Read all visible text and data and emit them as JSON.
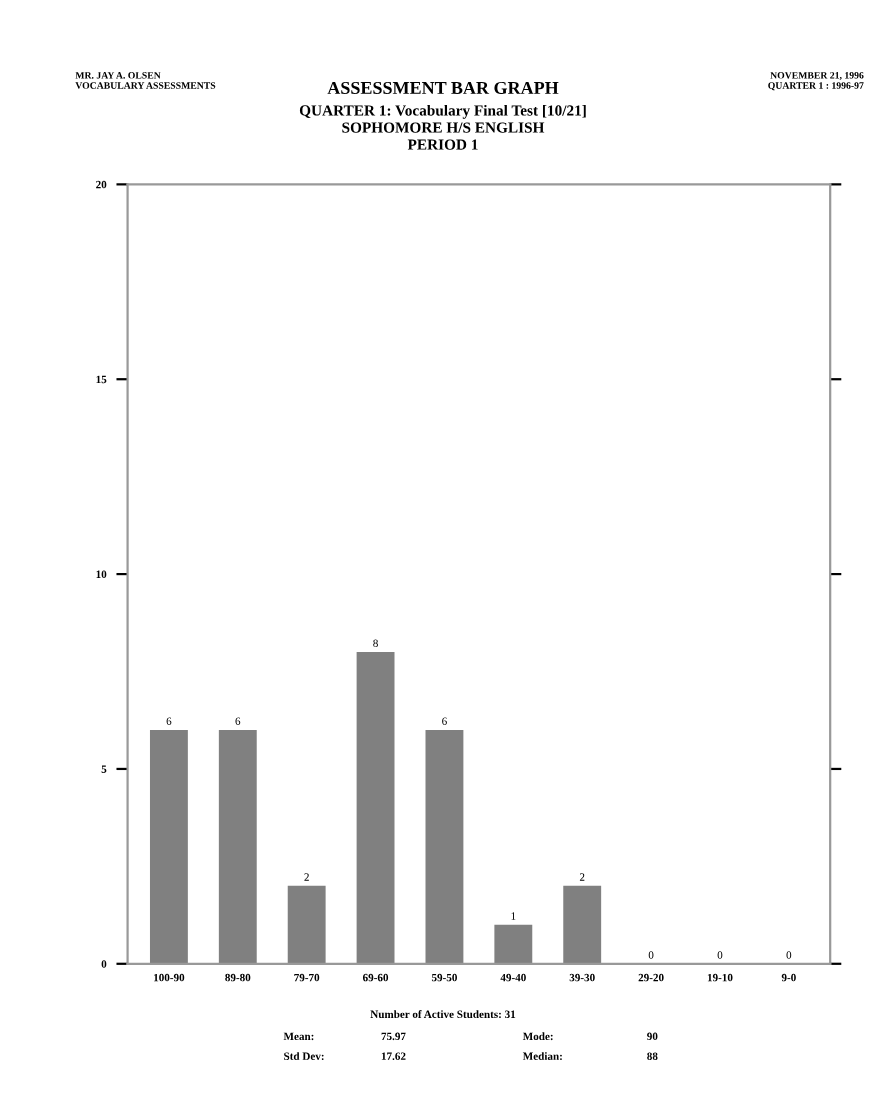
{
  "chart_data": {
    "type": "bar",
    "title": "ASSESSMENT BAR GRAPH",
    "subtitle": "QUARTER 1: Vocabulary Final Test [10/21]\nSOPHOMORE H/S ENGLISH\nPERIOD 1",
    "categories": [
      "100-90",
      "89-80",
      "79-70",
      "69-60",
      "59-50",
      "49-40",
      "39-30",
      "29-20",
      "19-10",
      "9-0"
    ],
    "values": [
      6,
      6,
      2,
      8,
      6,
      1,
      2,
      0,
      0,
      0
    ],
    "color": "#808080",
    "ylim": [
      0,
      20
    ],
    "yticks": [
      0,
      5,
      10,
      15,
      20
    ],
    "data_labels": true,
    "grid": false,
    "annotations": [
      "MR. JAY A. OLSEN\nVOCABULARY ASSESSMENTS",
      "NOVEMBER 21, 1996\nQUARTER 1 : 1996-97",
      "Number of Active Students: 31",
      "Mean:",
      "75.97",
      "Mode:",
      "90",
      "Std Dev:",
      "17.62",
      "Median:",
      "88"
    ]
  }
}
